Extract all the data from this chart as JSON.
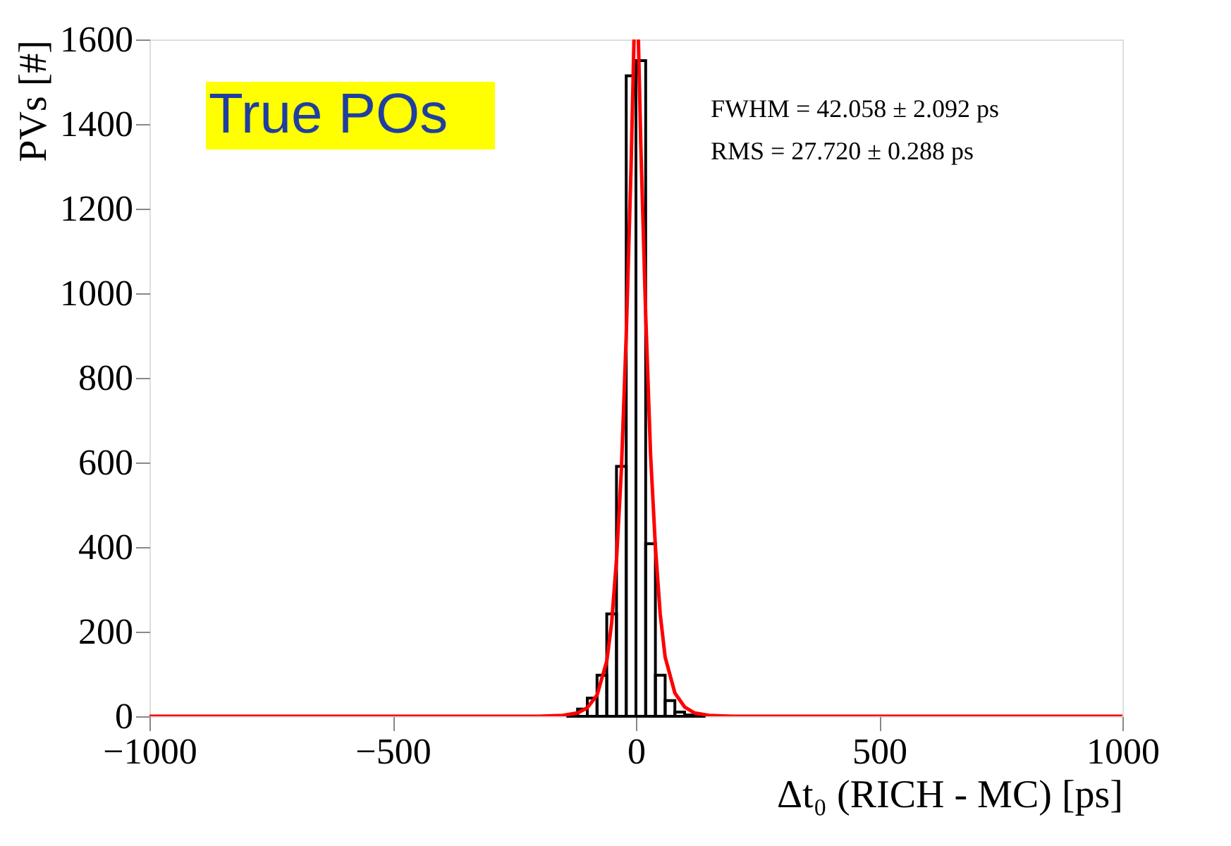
{
  "chart_data": {
    "type": "histogram",
    "xlabel": "Δt₀ (RICH - MC) [ps]",
    "ylabel": "PVs [#]",
    "bins": [
      -140,
      -120,
      -100,
      -80,
      -60,
      -40,
      -20,
      0,
      20,
      40,
      60,
      80,
      100,
      120,
      140
    ],
    "values": [
      3,
      17,
      43,
      97,
      242,
      591,
      1514,
      1550,
      408,
      97,
      37,
      10,
      3,
      1
    ],
    "color": "#000000",
    "series": [
      {
        "type": "line",
        "color": "#ff0000",
        "x": [
          -1000,
          -200,
          -150,
          -120,
          -100,
          -80,
          -60,
          -50,
          -40,
          -30,
          -20,
          -10,
          -4,
          0,
          5,
          10,
          20,
          30,
          40,
          50,
          60,
          80,
          100,
          120,
          150,
          200,
          1000
        ],
        "values": [
          0,
          0,
          2,
          8,
          20,
          50,
          130,
          220,
          370,
          580,
          900,
          1300,
          1600,
          null,
          1600,
          1350,
          950,
          620,
          400,
          240,
          140,
          55,
          22,
          8,
          2,
          0,
          0
        ]
      }
    ],
    "xlim": [
      -1000,
      1000
    ],
    "xticks": [
      -1000,
      -500,
      0,
      500,
      1000
    ],
    "ylim": [
      0,
      1600
    ],
    "yticks": [
      0,
      200,
      400,
      600,
      800,
      1000,
      1200,
      1400,
      1600
    ],
    "grid": false,
    "annotations": [
      "True POs",
      "FWHM = 42.058 ± 2.092 ps",
      "RMS = 27.720 ± 0.288 ps"
    ]
  }
}
